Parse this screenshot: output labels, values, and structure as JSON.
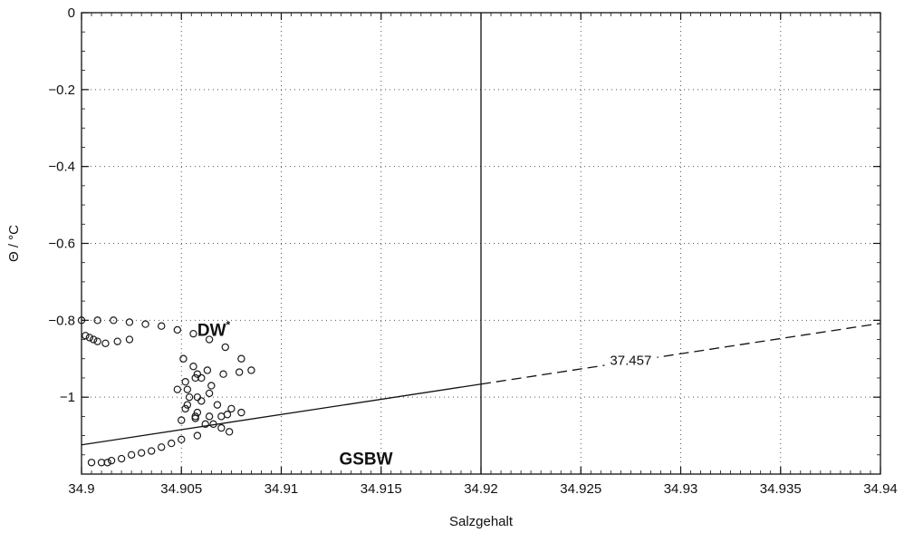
{
  "chart_data": {
    "type": "scatter",
    "xlabel": "Salzgehalt",
    "ylabel": "Θ / °C",
    "xlim": [
      34.9,
      34.94
    ],
    "ylim": [
      -1.2,
      0
    ],
    "x_ticks": [
      34.9,
      34.905,
      34.91,
      34.915,
      34.92,
      34.925,
      34.93,
      34.935,
      34.94
    ],
    "x_tick_labels": [
      "34.9",
      "34.905",
      "34.91",
      "34.915",
      "34.92",
      "34.925",
      "34.93",
      "34.935",
      "34.94"
    ],
    "y_ticks": [
      0,
      -0.2,
      -0.4,
      -0.6,
      -0.8,
      -1
    ],
    "y_tick_labels": [
      "0",
      "−0.2",
      "−0.4",
      "−0.6",
      "−0.8",
      "−1"
    ],
    "grid": true,
    "vertical_line": {
      "x": 34.92
    },
    "mixing_line": {
      "label": "37.457",
      "solid": {
        "x": [
          34.9,
          34.92
        ],
        "y": [
          -1.124,
          -0.966
        ]
      },
      "dashed": {
        "x": [
          34.92,
          34.94
        ],
        "y": [
          -0.966,
          -0.808
        ]
      }
    },
    "annotations": [
      {
        "text": "DW",
        "superscript": "*",
        "x": 34.9058,
        "y": -0.84
      },
      {
        "text": "GSBW",
        "x": 34.9129,
        "y": -1.175
      }
    ],
    "series": [
      {
        "x": [
          34.9,
          34.9008,
          34.9016,
          34.9024,
          34.9032,
          34.904,
          34.9048,
          34.9056,
          34.9064,
          34.9072,
          34.908,
          34.9085,
          34.9079,
          34.9071,
          34.9063,
          34.9057,
          34.9053,
          34.9054,
          34.906,
          34.9068,
          34.9075,
          34.908,
          34.9073,
          34.9064,
          34.9057,
          34.905,
          34.9051,
          34.9056,
          34.906,
          34.9065,
          34.9058,
          34.9052,
          34.9057,
          34.9062,
          34.907,
          34.9074,
          34.9066,
          34.9058,
          34.9053,
          34.9048,
          34.9052,
          34.9058,
          34.9064,
          34.907,
          34.9058,
          34.905,
          34.9045,
          34.904,
          34.9035,
          34.903,
          34.9025,
          34.902,
          34.9015,
          34.9013,
          34.901,
          34.9005,
          34.9002,
          34.9004,
          34.9006,
          34.9008,
          34.9012,
          34.9018,
          34.9024
        ],
        "y": [
          -0.8,
          -0.8,
          -0.8,
          -0.805,
          -0.81,
          -0.815,
          -0.825,
          -0.835,
          -0.85,
          -0.87,
          -0.9,
          -0.93,
          -0.935,
          -0.94,
          -0.93,
          -0.95,
          -0.98,
          -1.0,
          -1.01,
          -1.02,
          -1.03,
          -1.04,
          -1.045,
          -1.05,
          -1.055,
          -1.06,
          -0.9,
          -0.92,
          -0.95,
          -0.97,
          -1.0,
          -1.03,
          -1.05,
          -1.07,
          -1.08,
          -1.09,
          -1.07,
          -1.04,
          -1.02,
          -0.98,
          -0.96,
          -0.94,
          -0.99,
          -1.05,
          -1.1,
          -1.11,
          -1.12,
          -1.13,
          -1.14,
          -1.145,
          -1.15,
          -1.16,
          -1.165,
          -1.17,
          -1.17,
          -1.17,
          -0.84,
          -0.845,
          -0.85,
          -0.855,
          -0.86,
          -0.855,
          -0.85
        ]
      }
    ]
  }
}
